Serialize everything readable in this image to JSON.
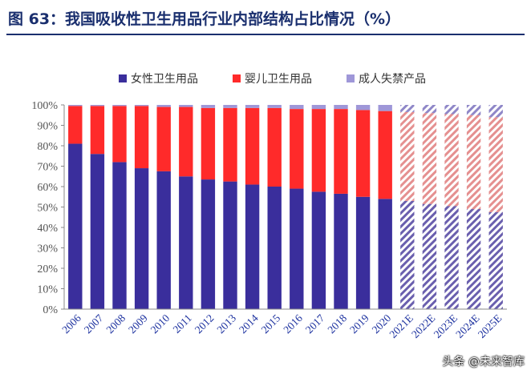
{
  "header": {
    "title": "图 63：我国吸收性卫生用品行业内部结构占比情况（%）"
  },
  "watermark": "头条 @未来智库",
  "colors": {
    "feminine": "#3a2e9c",
    "baby": "#ff2a2a",
    "adult": "#9f97d8",
    "forecast_feminine": "#6a5fae",
    "forecast_baby": "#e59090",
    "forecast_adult": "#8f87c8",
    "axis": "#888888",
    "tick_text": "#555555",
    "x_tick_text": "#1a2f9e"
  },
  "chart_data": {
    "type": "bar",
    "stacked": true,
    "categories": [
      "2006",
      "2007",
      "2008",
      "2009",
      "2010",
      "2011",
      "2012",
      "2013",
      "2014",
      "2015",
      "2016",
      "2017",
      "2018",
      "2019",
      "2020",
      "2021E",
      "2022E",
      "2023E",
      "2024E",
      "2025E"
    ],
    "forecast_from_index": 15,
    "series": [
      {
        "name": "女性卫生用品",
        "key": "feminine",
        "values": [
          81,
          76,
          72,
          69,
          67.5,
          65,
          63.5,
          62.5,
          61,
          60,
          59,
          57.5,
          56.5,
          55,
          54,
          53,
          51.5,
          50.5,
          49,
          47.5
        ]
      },
      {
        "name": "婴儿卫生用品",
        "key": "baby",
        "values": [
          18.5,
          23.5,
          27.5,
          30.5,
          31.5,
          34,
          35,
          36,
          37.5,
          38.5,
          39,
          40.5,
          41.5,
          42.5,
          43,
          43.5,
          44.5,
          45,
          46,
          46.5
        ]
      },
      {
        "name": "成人失禁产品",
        "key": "adult",
        "values": [
          0.5,
          0.5,
          0.5,
          0.5,
          1,
          1,
          1.5,
          1.5,
          1.5,
          1.5,
          2,
          2,
          2,
          2.5,
          3,
          3.5,
          4,
          4.5,
          5,
          6
        ]
      }
    ],
    "yticks": [
      "0%",
      "10%",
      "20%",
      "30%",
      "40%",
      "50%",
      "60%",
      "70%",
      "80%",
      "90%",
      "100%"
    ],
    "ylim": [
      0,
      100
    ],
    "legend_position": "top-center"
  }
}
